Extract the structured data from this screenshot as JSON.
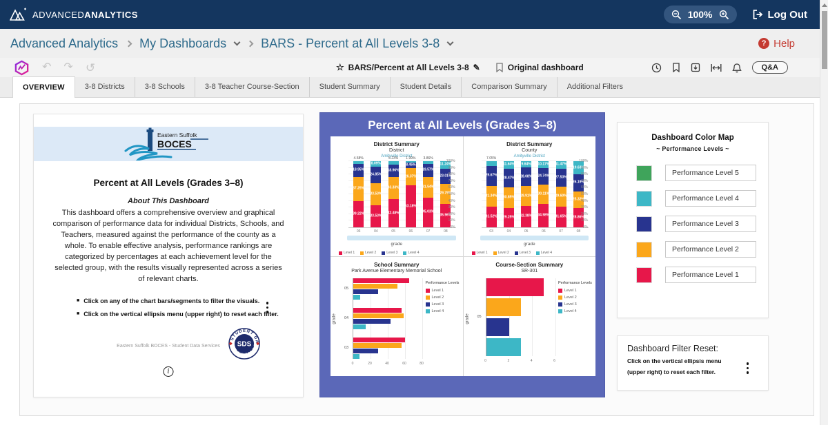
{
  "top_bar": {
    "brand_prefix": "ADVANCED",
    "brand_suffix": "ANALYTICS",
    "zoom_level": "100%",
    "logout_label": "Log Out"
  },
  "breadcrumb": {
    "items": [
      {
        "label": "Advanced Analytics",
        "dropdown": false
      },
      {
        "label": "My Dashboards",
        "dropdown": true
      },
      {
        "label": "BARS - Percent at All Levels 3-8",
        "dropdown": true
      }
    ],
    "help_label": "Help"
  },
  "toolbar": {
    "dashboard_name": "BARS/Percent at All Levels 3-8",
    "original_label": "Original dashboard",
    "qa_label": "Q&A"
  },
  "tabs": {
    "active": "OVERVIEW",
    "items": [
      "OVERVIEW",
      "3-8 Districts",
      "3-8 Schools",
      "3-8 Teacher Course-Section",
      "Student Summary",
      "Student Details",
      "Comparison Summary",
      "Additional Filters"
    ]
  },
  "intro": {
    "org_line1": "Eastern Suffolk",
    "org_line2": "BOCES",
    "title": "Percent at All Levels (Grades 3–8)",
    "about_heading": "About This Dashboard",
    "about_text": "This dashboard offers a comprehensive overview and graphical comparison of performance data for individual Districts, Schools, and Teachers, measured against the performance of the county as a whole.  To enable effective analysis, performance rankings are categorized by percentages at each achievement level for the selected group, with the results visually represented across a series of relevant charts.",
    "bullets": [
      "Click on any of the chart bars/segments to filter the visuals.",
      "Click on the vertical ellipsis menu (upper right) to reset each filter."
    ],
    "footer": "Eastern Suffolk BOCES - Student Data Services",
    "badge_center": "SDS",
    "badge_top": "STUDENT DATA",
    "badge_bottom": "SERVICES"
  },
  "chart_panel": {
    "title": "Percent at All Levels (Grades 3–8)"
  },
  "chart_data": [
    {
      "type": "stacked-bar",
      "title": "District Summary",
      "subtitle": "District",
      "filter_label": "Amityville District",
      "categories": [
        "03",
        "04",
        "05",
        "06",
        "07",
        "08"
      ],
      "series": [
        {
          "name": "Level 1",
          "color": "#e7174a",
          "values": [
            39.22,
            33.53,
            42.48,
            63.18,
            45.03,
            35.96
          ]
        },
        {
          "name": "Level 2",
          "color": "#fba71b",
          "values": [
            37.25,
            33.53,
            33.33,
            26.37,
            31.54,
            29.79
          ]
        },
        {
          "name": "Level 3",
          "color": "#28348f",
          "values": [
            18.95,
            24.85,
            18.96,
            8.45,
            19.57,
            23.01
          ]
        },
        {
          "name": "Level 4",
          "color": "#3db7c6",
          "values": [
            4.58,
            8.09,
            5.23,
            1.99,
            3.86,
            11.24
          ]
        }
      ],
      "xlabel": "grade",
      "ylim": [
        0,
        100
      ],
      "ytick_step": 10,
      "legend_position": "bottom"
    },
    {
      "type": "stacked-bar",
      "title": "District Summary",
      "subtitle": "County",
      "filter_label": "Amityville District",
      "categories": [
        "03",
        "04",
        "05",
        "06",
        "07",
        "08"
      ],
      "series": [
        {
          "name": "Level 1",
          "color": "#e7174a",
          "values": [
            31.52,
            29.25,
            32.38,
            34.98,
            31.65,
            28.86
          ]
        },
        {
          "name": "Level 2",
          "color": "#fba71b",
          "values": [
            31.34,
            30.85,
            29.91,
            30.11,
            29.6,
            25.32
          ]
        },
        {
          "name": "Level 3",
          "color": "#28348f",
          "values": [
            29.67,
            28.47,
            28.08,
            24.74,
            27.53,
            26.19
          ]
        },
        {
          "name": "Level 4",
          "color": "#3db7c6",
          "values": [
            7.05,
            11.64,
            9.64,
            10.17,
            11.47,
            19.63
          ]
        }
      ],
      "xlabel": "grade",
      "ylim": [
        0,
        100
      ],
      "ytick_step": 10,
      "legend_position": "bottom"
    },
    {
      "type": "grouped-hbar",
      "title": "School Summary",
      "subtitle": "Park Avenue Elementary Memorial School",
      "categories": [
        "05",
        "04",
        "03"
      ],
      "series": [
        {
          "name": "Level 1",
          "color": "#e7174a",
          "values": [
            65,
            56,
            60
          ]
        },
        {
          "name": "Level 2",
          "color": "#fba71b",
          "values": [
            51,
            58,
            56
          ]
        },
        {
          "name": "Level 3",
          "color": "#28348f",
          "values": [
            29,
            43,
            29
          ]
        },
        {
          "name": "Level 4",
          "color": "#3db7c6",
          "values": [
            8,
            14,
            7
          ]
        }
      ],
      "ylabel": "grade",
      "xlim": [
        0,
        80
      ],
      "xticks": [
        0,
        20,
        40,
        60,
        80
      ],
      "legend_title": "Performance Levels",
      "legend_position": "right"
    },
    {
      "type": "grouped-hbar",
      "title": "Course-Section Summary",
      "subtitle": "SR-301",
      "categories": [
        "05"
      ],
      "series": [
        {
          "name": "Level 1",
          "color": "#e7174a",
          "values": [
            5
          ]
        },
        {
          "name": "Level 2",
          "color": "#fba71b",
          "values": [
            3
          ]
        },
        {
          "name": "Level 3",
          "color": "#28348f",
          "values": [
            2
          ]
        },
        {
          "name": "Level 4",
          "color": "#3db7c6",
          "values": [
            3
          ]
        }
      ],
      "ylabel": "grade",
      "xlim": [
        0,
        6
      ],
      "xticks": [
        0,
        2,
        4,
        6
      ],
      "legend_title": "Performance Levels",
      "legend_position": "right"
    }
  ],
  "color_map": {
    "title": "Dashboard Color Map",
    "subtitle": "~ Performance Levels ~",
    "levels": [
      {
        "label": "Performance Level 5",
        "color": "#3fa45b"
      },
      {
        "label": "Performance Level 4",
        "color": "#3db7c6"
      },
      {
        "label": "Performance Level 3",
        "color": "#28348f"
      },
      {
        "label": "Performance Level 2",
        "color": "#fba71b"
      },
      {
        "label": "Performance Level 1",
        "color": "#e7174a"
      }
    ]
  },
  "filter_reset": {
    "title": "Dashboard Filter Reset:",
    "line1": "Click on the vertical ellipsis menu",
    "line2": "(upper right) to reset each filter."
  },
  "colors": {
    "topbar_navy": "#14365f",
    "accent_purple": "#5b68b8",
    "help_red": "#c43a31",
    "boces_band_blue": "#dce9f7"
  }
}
